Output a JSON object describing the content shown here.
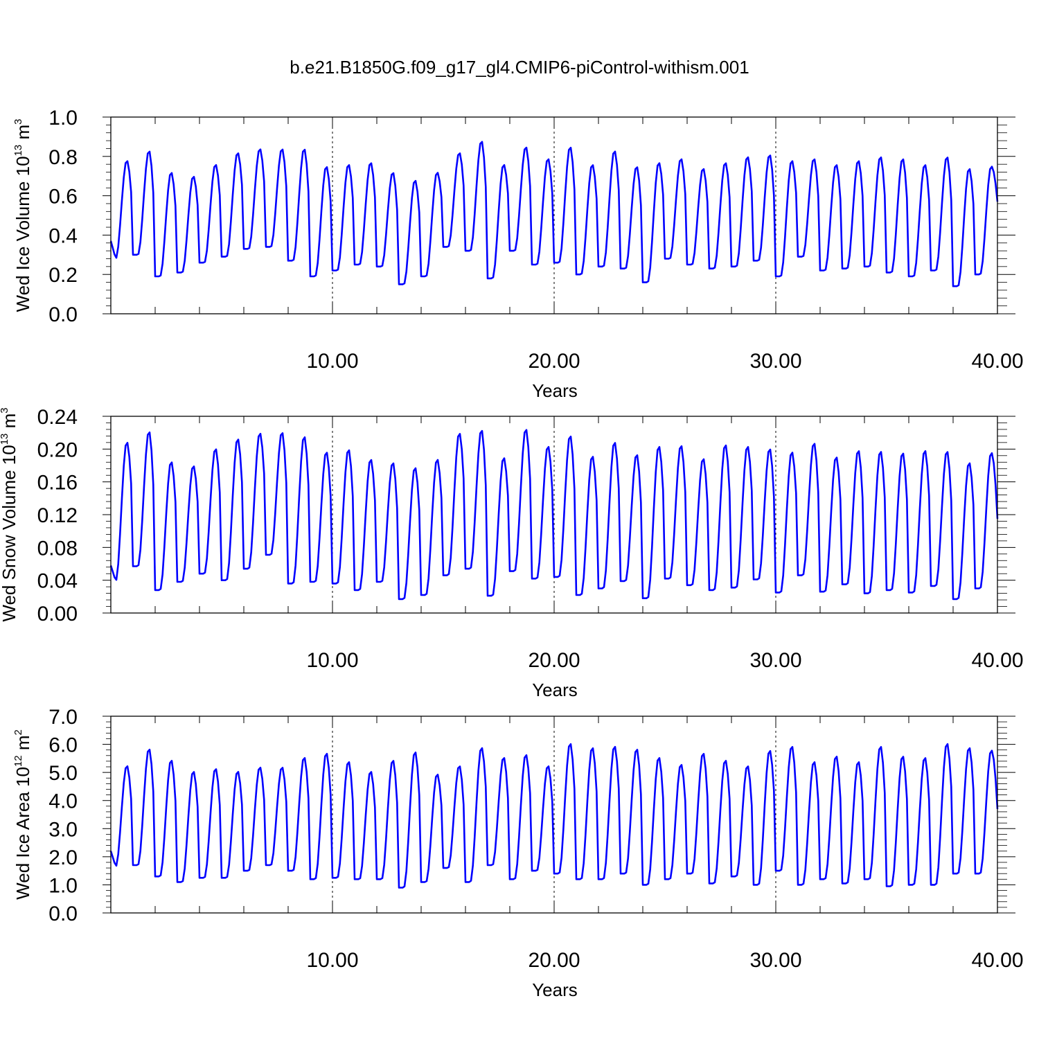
{
  "figure": {
    "title": "b.e21.B1850G.f09_g17_gl4.CMIP6-piControl-withism.001",
    "line_color": "#0000ff"
  },
  "chart_data": [
    {
      "type": "line",
      "id": "ice-volume",
      "xlabel": "Years",
      "ylabel_main": "Wed Ice Volume 10",
      "ylabel_exp": "13",
      "ylabel_unit": " m",
      "ylabel_unit_exp": "3",
      "xlim": [
        0,
        40
      ],
      "ylim": [
        0,
        1.0
      ],
      "x_tick_values": [
        10,
        20,
        30,
        40
      ],
      "x_tick_labels": [
        "10.00",
        "20.00",
        "30.00",
        "40.00"
      ],
      "y_tick_values": [
        0,
        0.2,
        0.4,
        0.6,
        0.8,
        1.0
      ],
      "y_tick_labels": [
        "0.0",
        "0.2",
        "0.4",
        "0.6",
        "0.8",
        "1.0"
      ],
      "grid": "dashed vertical lines at 10, 20, 30",
      "series": [
        {
          "color": "#0000ff",
          "annual_max": [
            0.78,
            0.83,
            0.72,
            0.7,
            0.76,
            0.82,
            0.84,
            0.84,
            0.84,
            0.75,
            0.76,
            0.77,
            0.72,
            0.68,
            0.72,
            0.82,
            0.88,
            0.76,
            0.85,
            0.79,
            0.85,
            0.76,
            0.83,
            0.75,
            0.77,
            0.79,
            0.74,
            0.77,
            0.8,
            0.81,
            0.78,
            0.79,
            0.76,
            0.78,
            0.8,
            0.79,
            0.76,
            0.8,
            0.74,
            0.75
          ],
          "annual_min": [
            0.28,
            0.3,
            0.19,
            0.21,
            0.26,
            0.29,
            0.33,
            0.34,
            0.27,
            0.19,
            0.22,
            0.25,
            0.24,
            0.15,
            0.19,
            0.34,
            0.32,
            0.18,
            0.32,
            0.25,
            0.26,
            0.2,
            0.24,
            0.23,
            0.16,
            0.28,
            0.25,
            0.23,
            0.24,
            0.27,
            0.19,
            0.29,
            0.22,
            0.23,
            0.24,
            0.21,
            0.19,
            0.22,
            0.14,
            0.2
          ],
          "start_value": 0.37,
          "end_value": 0.57
        }
      ]
    },
    {
      "type": "line",
      "id": "snow-volume",
      "xlabel": "Years",
      "ylabel_main": "Wed Snow Volume 10",
      "ylabel_exp": "13",
      "ylabel_unit": " m",
      "ylabel_unit_exp": "3",
      "xlim": [
        0,
        40
      ],
      "ylim": [
        0,
        0.24
      ],
      "x_tick_values": [
        10,
        20,
        30,
        40
      ],
      "x_tick_labels": [
        "10.00",
        "20.00",
        "30.00",
        "40.00"
      ],
      "y_tick_values": [
        0,
        0.04,
        0.08,
        0.12,
        0.16,
        0.2,
        0.24
      ],
      "y_tick_labels": [
        "0.00",
        "0.04",
        "0.08",
        "0.12",
        "0.16",
        "0.20",
        "0.24"
      ],
      "grid": "dashed vertical lines at 10, 20, 30",
      "series": [
        {
          "color": "#0000ff",
          "annual_max": [
            0.209,
            0.222,
            0.185,
            0.18,
            0.201,
            0.213,
            0.22,
            0.221,
            0.216,
            0.197,
            0.2,
            0.188,
            0.184,
            0.178,
            0.188,
            0.22,
            0.224,
            0.19,
            0.225,
            0.204,
            0.217,
            0.192,
            0.209,
            0.194,
            0.204,
            0.205,
            0.189,
            0.206,
            0.204,
            0.201,
            0.197,
            0.208,
            0.191,
            0.199,
            0.198,
            0.196,
            0.199,
            0.198,
            0.184,
            0.196
          ],
          "annual_min": [
            0.039,
            0.057,
            0.028,
            0.038,
            0.048,
            0.04,
            0.054,
            0.071,
            0.036,
            0.038,
            0.036,
            0.028,
            0.038,
            0.017,
            0.022,
            0.046,
            0.054,
            0.021,
            0.051,
            0.042,
            0.044,
            0.022,
            0.03,
            0.039,
            0.018,
            0.042,
            0.034,
            0.028,
            0.031,
            0.041,
            0.025,
            0.046,
            0.026,
            0.035,
            0.024,
            0.028,
            0.025,
            0.033,
            0.017,
            0.03
          ],
          "start_value": 0.058,
          "end_value": 0.115
        }
      ]
    },
    {
      "type": "line",
      "id": "ice-area",
      "xlabel": "Years",
      "ylabel_main": "Wed Ice Area 10",
      "ylabel_exp": "12",
      "ylabel_unit": " m",
      "ylabel_unit_exp": "2",
      "xlim": [
        0,
        40
      ],
      "ylim": [
        0,
        7.0
      ],
      "x_tick_values": [
        10,
        20,
        30,
        40
      ],
      "x_tick_labels": [
        "10.00",
        "20.00",
        "30.00",
        "40.00"
      ],
      "y_tick_values": [
        0,
        1,
        2,
        3,
        4,
        5,
        6,
        7
      ],
      "y_tick_labels": [
        "0.0",
        "1.0",
        "2.0",
        "3.0",
        "4.0",
        "5.0",
        "6.0",
        "7.0"
      ],
      "grid": "dashed vertical lines at 10, 20, 30",
      "series": [
        {
          "color": "#0000ff",
          "annual_max": [
            5.25,
            5.85,
            5.45,
            5.05,
            5.15,
            5.05,
            5.2,
            5.2,
            5.55,
            5.7,
            5.4,
            5.05,
            5.45,
            5.75,
            4.95,
            5.25,
            5.9,
            5.55,
            5.65,
            5.25,
            6.05,
            5.9,
            5.95,
            5.85,
            5.55,
            5.3,
            5.7,
            5.45,
            5.25,
            5.8,
            5.95,
            5.4,
            5.6,
            5.4,
            5.95,
            5.6,
            5.55,
            6.05,
            5.9,
            5.8
          ],
          "annual_min": [
            1.65,
            1.7,
            1.3,
            1.1,
            1.25,
            1.25,
            1.5,
            1.7,
            1.5,
            1.2,
            1.25,
            1.2,
            1.2,
            0.9,
            1.1,
            1.6,
            1.1,
            1.7,
            1.2,
            1.5,
            1.4,
            1.2,
            1.2,
            1.4,
            1.0,
            1.2,
            1.4,
            1.05,
            1.3,
            1.0,
            1.5,
            1.0,
            1.2,
            1.05,
            1.2,
            0.95,
            1.0,
            1.0,
            1.4,
            1.4
          ],
          "start_value": 2.2,
          "end_value": 3.7
        }
      ]
    }
  ]
}
